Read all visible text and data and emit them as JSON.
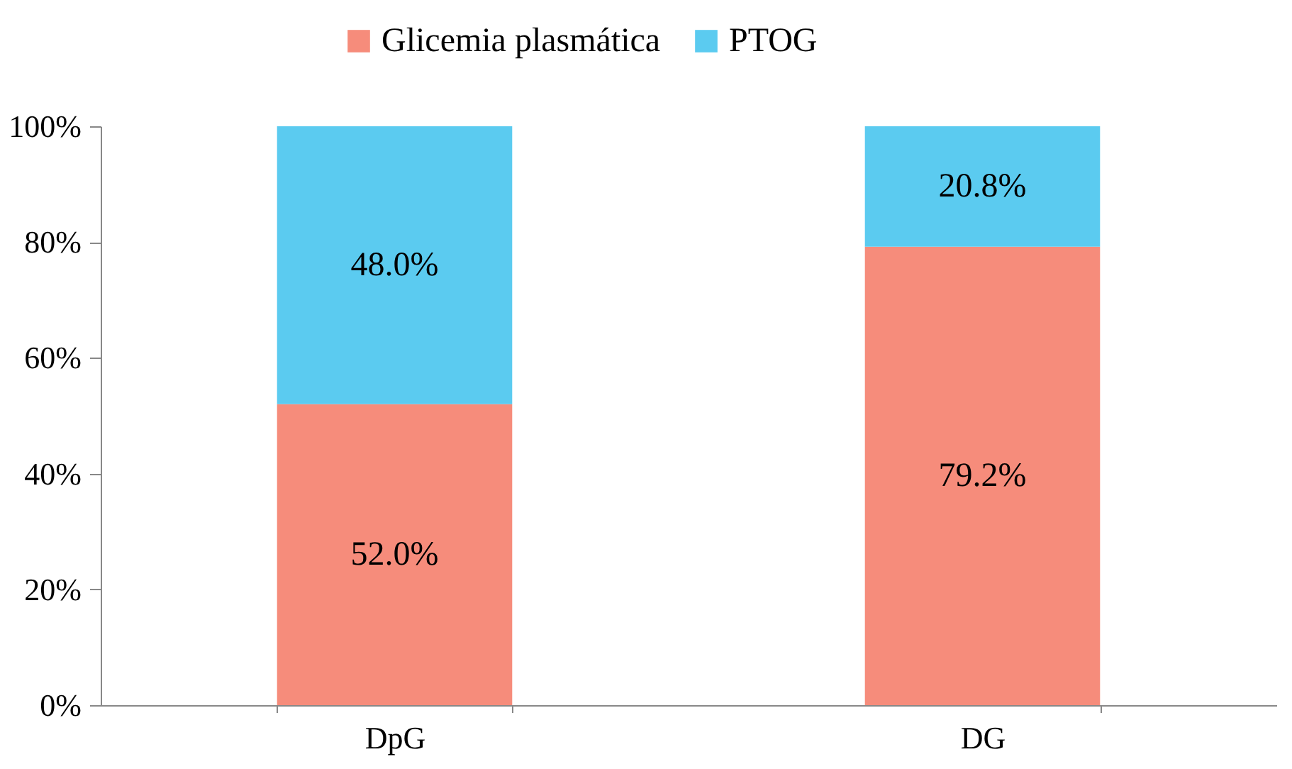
{
  "chart_data": {
    "type": "bar",
    "stacked": true,
    "categories": [
      "DpG",
      "DG"
    ],
    "series": [
      {
        "name": "Glicemia plasmática",
        "color": "#f68c7b",
        "values": [
          52.0,
          79.2
        ],
        "value_labels": [
          "52.0%",
          "79.2%"
        ]
      },
      {
        "name": "PTOG",
        "color": "#5bcbf0",
        "values": [
          48.0,
          20.8
        ],
        "value_labels": [
          "48.0%",
          "20.8%"
        ]
      }
    ],
    "ylim": [
      0,
      100
    ],
    "yticks": [
      {
        "value": 0,
        "label": "0%"
      },
      {
        "value": 20,
        "label": "20%"
      },
      {
        "value": 40,
        "label": "40%"
      },
      {
        "value": 60,
        "label": "60%"
      },
      {
        "value": 80,
        "label": "80%"
      },
      {
        "value": 100,
        "label": "100%"
      }
    ],
    "grid": false,
    "legend": "top"
  }
}
